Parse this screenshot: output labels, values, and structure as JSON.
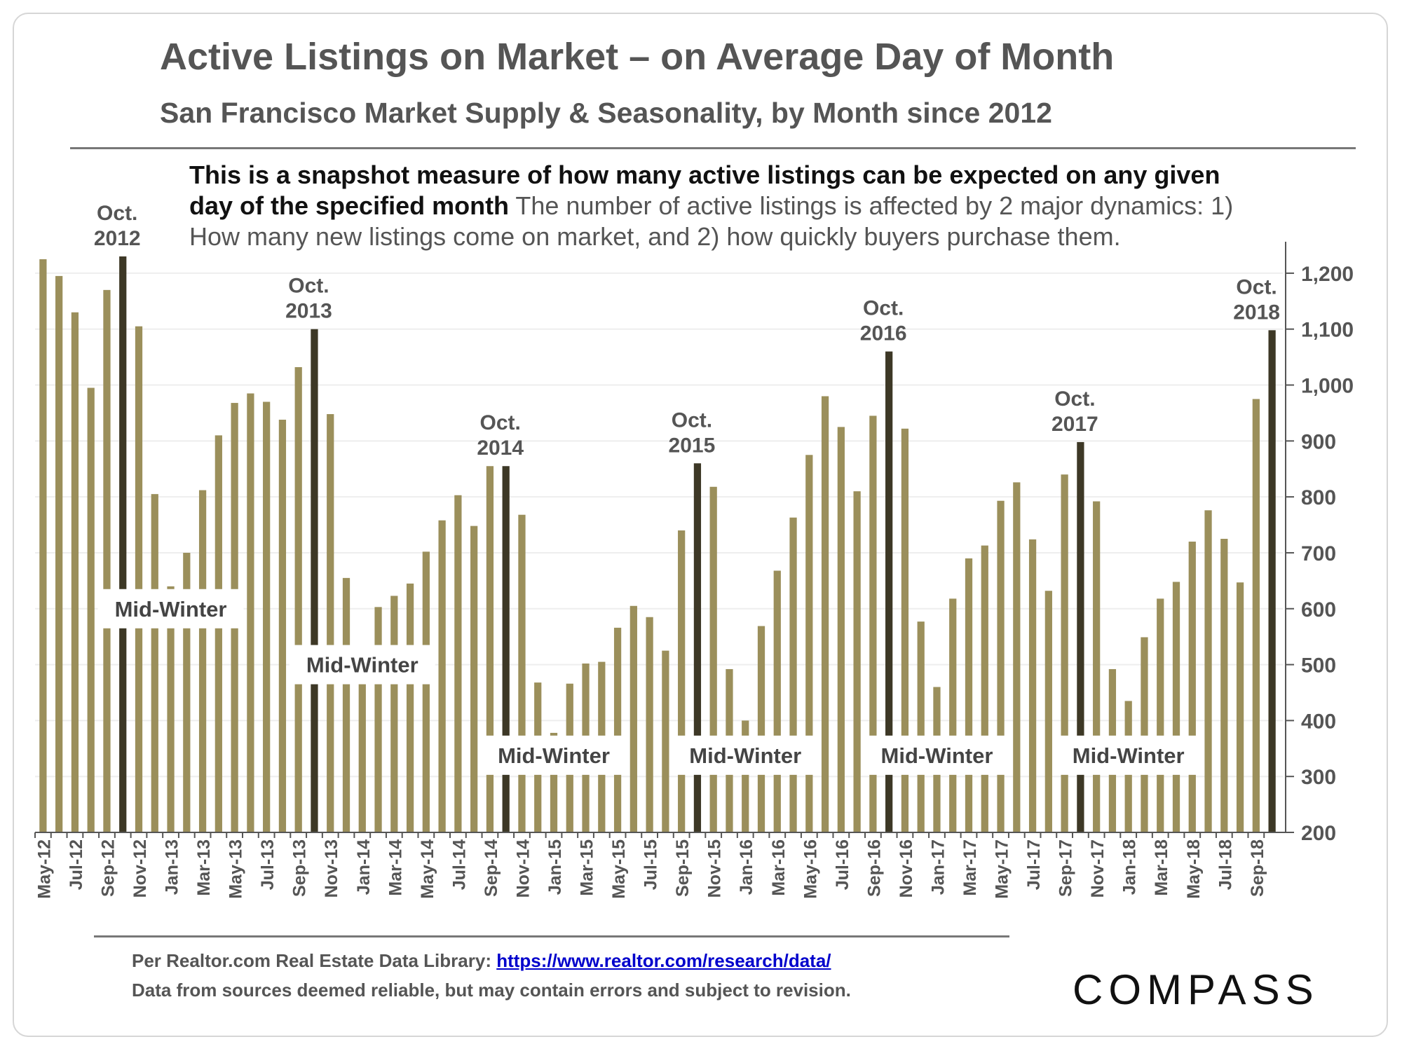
{
  "header": {
    "title": "Active Listings on Market – on Average Day of Month",
    "subtitle": "San Francisco Market Supply & Seasonality, by Month since 2012"
  },
  "description": {
    "bold": "This is a snapshot measure of how many active listings can be expected on any given day of the specified month",
    "normal": " The number of active listings is affected by 2 major dynamics: 1) How many new listings come on market, and 2) how quickly buyers purchase them."
  },
  "footer": {
    "source_prefix": "Per Realtor.com Real Estate Data Library: ",
    "source_link": "https://www.realtor.com/research/data/",
    "disclaimer": "Data from sources deemed reliable, but may contain errors and subject to revision.",
    "brand": "COMPASS"
  },
  "colors": {
    "bar": "#9b8f5b",
    "highlight": "#3d3826",
    "axis": "#555555",
    "grid": "#eeeeee"
  },
  "chart_data": {
    "type": "bar",
    "title": "Active Listings on Market – on Average Day of Month",
    "ylim": [
      200,
      1250
    ],
    "yticks": [
      200,
      300,
      400,
      500,
      600,
      700,
      800,
      900,
      1000,
      1100,
      1200
    ],
    "ytick_labels": [
      "200",
      "300",
      "400",
      "500",
      "600",
      "700",
      "800",
      "900",
      "1,000",
      "1,100",
      "1,200"
    ],
    "categories": [
      "May-12",
      "Jun-12",
      "Jul-12",
      "Aug-12",
      "Sep-12",
      "Oct-12",
      "Nov-12",
      "Dec-12",
      "Jan-13",
      "Feb-13",
      "Mar-13",
      "Apr-13",
      "May-13",
      "Jun-13",
      "Jul-13",
      "Aug-13",
      "Sep-13",
      "Oct-13",
      "Nov-13",
      "Dec-13",
      "Jan-14",
      "Feb-14",
      "Mar-14",
      "Apr-14",
      "May-14",
      "Jun-14",
      "Jul-14",
      "Aug-14",
      "Sep-14",
      "Oct-14",
      "Nov-14",
      "Dec-14",
      "Jan-15",
      "Feb-15",
      "Mar-15",
      "Apr-15",
      "May-15",
      "Jun-15",
      "Jul-15",
      "Aug-15",
      "Sep-15",
      "Oct-15",
      "Nov-15",
      "Dec-15",
      "Jan-16",
      "Feb-16",
      "Mar-16",
      "Apr-16",
      "May-16",
      "Jun-16",
      "Jul-16",
      "Aug-16",
      "Sep-16",
      "Oct-16",
      "Nov-16",
      "Dec-16",
      "Jan-17",
      "Feb-17",
      "Mar-17",
      "Apr-17",
      "May-17",
      "Jun-17",
      "Jul-17",
      "Aug-17",
      "Sep-17",
      "Oct-17",
      "Nov-17",
      "Dec-17",
      "Jan-18",
      "Feb-18",
      "Mar-18",
      "Apr-18",
      "May-18",
      "Jun-18",
      "Jul-18",
      "Aug-18",
      "Sep-18",
      "Oct-18"
    ],
    "tick_labels": [
      "May-12",
      "Jul-12",
      "Sep-12",
      "Nov-12",
      "Jan-13",
      "Mar-13",
      "May-13",
      "Jul-13",
      "Sep-13",
      "Nov-13",
      "Jan-14",
      "Mar-14",
      "May-14",
      "Jul-14",
      "Sep-14",
      "Nov-14",
      "Jan-15",
      "Mar-15",
      "May-15",
      "Jul-15",
      "Sep-15",
      "Nov-15",
      "Jan-16",
      "Mar-16",
      "May-16",
      "Jul-16",
      "Sep-16",
      "Nov-16",
      "Jan-17",
      "Mar-17",
      "May-17",
      "Jul-17",
      "Sep-17",
      "Nov-17",
      "Jan-18",
      "Mar-18",
      "May-18",
      "Jul-18",
      "Sep-18"
    ],
    "values": [
      1225,
      1195,
      1130,
      995,
      1170,
      1230,
      1105,
      805,
      640,
      700,
      812,
      910,
      968,
      985,
      970,
      938,
      1032,
      1100,
      948,
      655,
      510,
      603,
      623,
      645,
      702,
      758,
      803,
      748,
      855,
      855,
      768,
      468,
      378,
      466,
      502,
      505,
      566,
      605,
      585,
      525,
      740,
      860,
      818,
      492,
      400,
      569,
      668,
      763,
      875,
      980,
      925,
      810,
      945,
      1060,
      922,
      577,
      460,
      618,
      690,
      713,
      793,
      826,
      724,
      632,
      840,
      898,
      792,
      492,
      435,
      549,
      618,
      648,
      720,
      776,
      725,
      647,
      975,
      1098
    ],
    "highlights": [
      {
        "category": "Oct-12",
        "line1": "Oct.",
        "line2": "2012"
      },
      {
        "category": "Oct-13",
        "line1": "Oct.",
        "line2": "2013"
      },
      {
        "category": "Oct-14",
        "line1": "Oct.",
        "line2": "2014"
      },
      {
        "category": "Oct-15",
        "line1": "Oct.",
        "line2": "2015"
      },
      {
        "category": "Oct-16",
        "line1": "Oct.",
        "line2": "2016"
      },
      {
        "category": "Oct-17",
        "line1": "Oct.",
        "line2": "2017"
      },
      {
        "category": "Oct-18",
        "line1": "Oct.",
        "line2": "2018"
      }
    ],
    "annotations": [
      {
        "text": "Mid-Winter",
        "center": "Jan-13",
        "y": 600
      },
      {
        "text": "Mid-Winter",
        "center": "Jan-14",
        "y": 500
      },
      {
        "text": "Mid-Winter",
        "center": "Jan-15",
        "y": 338
      },
      {
        "text": "Mid-Winter",
        "center": "Jan-16",
        "y": 338
      },
      {
        "text": "Mid-Winter",
        "center": "Jan-17",
        "y": 338
      },
      {
        "text": "Mid-Winter",
        "center": "Jan-18",
        "y": 338
      }
    ]
  }
}
